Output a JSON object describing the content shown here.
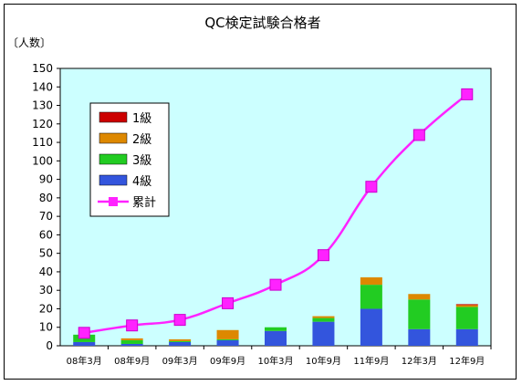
{
  "chart_data": {
    "type": "bar",
    "title": "QC検定試験合格者",
    "ylabel": "〔人数〕",
    "xlabel": "",
    "categories": [
      "08年3月",
      "08年9月",
      "09年3月",
      "09年9月",
      "10年3月",
      "10年9月",
      "11年9月",
      "12年3月",
      "12年9月"
    ],
    "ylim": [
      0,
      150
    ],
    "yticks": [
      0,
      10,
      20,
      30,
      40,
      50,
      60,
      70,
      80,
      90,
      100,
      110,
      120,
      130,
      140,
      150
    ],
    "stacked": true,
    "series": [
      {
        "name": "4級",
        "color": "#3355dd",
        "values": [
          2,
          1,
          2,
          3,
          8,
          13,
          20,
          9,
          9
        ]
      },
      {
        "name": "3級",
        "color": "#22cc22",
        "values": [
          4,
          2,
          0.5,
          0.5,
          2,
          2,
          13,
          16,
          12
        ]
      },
      {
        "name": "2級",
        "color": "#dd8800",
        "values": [
          0,
          1,
          1,
          5,
          0,
          1,
          4,
          3,
          1
        ]
      },
      {
        "name": "1級",
        "color": "#cc0000",
        "values": [
          0,
          0,
          0,
          0,
          0,
          0,
          0,
          0,
          0.5
        ]
      }
    ],
    "line_series": {
      "name": "累計",
      "color": "#ff22ff",
      "values": [
        7,
        11,
        14,
        23,
        33,
        49,
        86,
        114,
        136
      ]
    },
    "legend_position": "top-left inside plot",
    "plot_background": "#ccffff",
    "grid": false
  }
}
